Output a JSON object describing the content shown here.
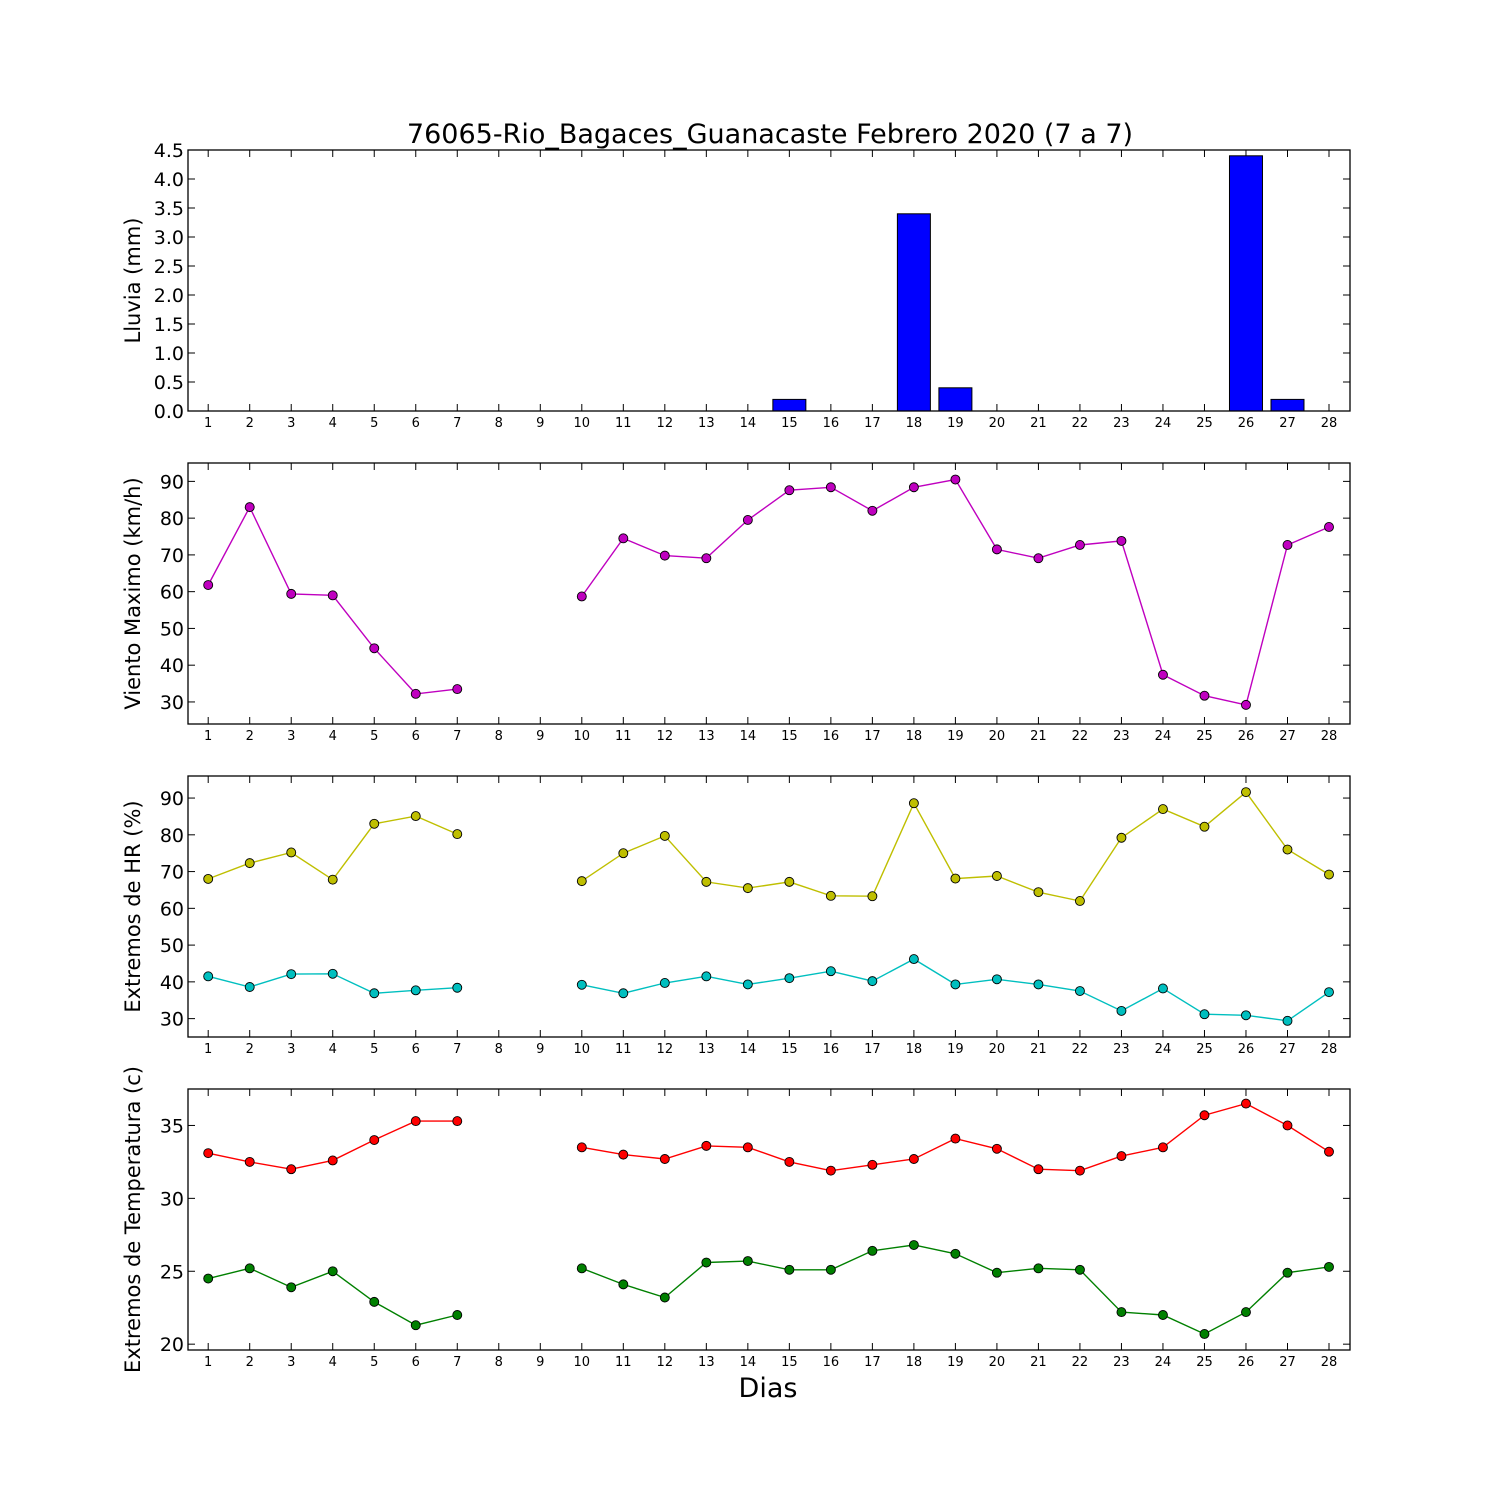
{
  "chart_data": [
    {
      "type": "bar",
      "title": "76065-Rio_Bagaces_Guanacaste Febrero 2020  (7 a 7)",
      "ylabel": "Lluvia (mm)",
      "ylim": [
        0,
        4.5
      ],
      "yticks": [
        "0.0",
        "0.5",
        "1.0",
        "1.5",
        "2.0",
        "2.5",
        "3.0",
        "3.5",
        "4.0",
        "4.5"
      ],
      "categories": [
        "1",
        "2",
        "3",
        "4",
        "5",
        "6",
        "7",
        "8",
        "9",
        "10",
        "11",
        "12",
        "13",
        "14",
        "15",
        "16",
        "17",
        "18",
        "19",
        "20",
        "21",
        "22",
        "23",
        "24",
        "25",
        "26",
        "27",
        "28"
      ],
      "series": [
        {
          "color": "#0000ff",
          "values": [
            0,
            0,
            0,
            0,
            0,
            0,
            0,
            null,
            null,
            0,
            0,
            0,
            0,
            0,
            0.2,
            0,
            0,
            3.4,
            0.4,
            0,
            0,
            0,
            0,
            0,
            0,
            4.4,
            0.2,
            0
          ]
        }
      ]
    },
    {
      "type": "line",
      "ylabel": "Viento Maximo (km/h)",
      "ylim": [
        24,
        95
      ],
      "yticks": [
        "30",
        "40",
        "50",
        "60",
        "70",
        "80",
        "90"
      ],
      "categories": [
        "1",
        "2",
        "3",
        "4",
        "5",
        "6",
        "7",
        "8",
        "9",
        "10",
        "11",
        "12",
        "13",
        "14",
        "15",
        "16",
        "17",
        "18",
        "19",
        "20",
        "21",
        "22",
        "23",
        "24",
        "25",
        "26",
        "27",
        "28"
      ],
      "series": [
        {
          "color": "#bf00bf",
          "values": [
            61.8,
            83.0,
            59.4,
            59.0,
            44.6,
            32.2,
            33.5,
            null,
            null,
            58.7,
            74.5,
            69.8,
            69.1,
            79.5,
            87.6,
            88.4,
            82.0,
            88.4,
            90.5,
            71.5,
            69.1,
            72.7,
            73.8,
            37.4,
            31.7,
            29.2,
            72.7,
            77.6
          ]
        }
      ]
    },
    {
      "type": "line",
      "ylabel": "Extremos de HR (%)",
      "ylim": [
        25,
        96
      ],
      "yticks": [
        "30",
        "40",
        "50",
        "60",
        "70",
        "80",
        "90"
      ],
      "categories": [
        "1",
        "2",
        "3",
        "4",
        "5",
        "6",
        "7",
        "8",
        "9",
        "10",
        "11",
        "12",
        "13",
        "14",
        "15",
        "16",
        "17",
        "18",
        "19",
        "20",
        "21",
        "22",
        "23",
        "24",
        "25",
        "26",
        "27",
        "28"
      ],
      "series": [
        {
          "color": "#bfbf00",
          "values": [
            68.0,
            72.3,
            75.2,
            67.8,
            83.0,
            85.1,
            80.2,
            null,
            null,
            67.4,
            75.0,
            79.7,
            67.2,
            65.5,
            67.2,
            63.4,
            63.3,
            88.6,
            68.1,
            68.8,
            64.4,
            62.0,
            79.2,
            87.0,
            82.2,
            91.6,
            76.0,
            69.2
          ]
        },
        {
          "color": "#00bfbf",
          "values": [
            41.5,
            38.6,
            42.1,
            42.2,
            36.9,
            37.7,
            38.4,
            null,
            null,
            39.2,
            36.9,
            39.7,
            41.5,
            39.3,
            41.0,
            42.9,
            40.2,
            46.2,
            39.3,
            40.7,
            39.3,
            37.5,
            32.1,
            38.2,
            31.2,
            30.9,
            29.4,
            37.2
          ]
        }
      ]
    },
    {
      "type": "line",
      "ylabel": "Extremos de Temperatura (c)",
      "xlabel": "Dias",
      "ylim": [
        19.6,
        37.5
      ],
      "yticks": [
        "20",
        "25",
        "30",
        "35"
      ],
      "categories": [
        "1",
        "2",
        "3",
        "4",
        "5",
        "6",
        "7",
        "8",
        "9",
        "10",
        "11",
        "12",
        "13",
        "14",
        "15",
        "16",
        "17",
        "18",
        "19",
        "20",
        "21",
        "22",
        "23",
        "24",
        "25",
        "26",
        "27",
        "28"
      ],
      "series": [
        {
          "color": "#ff0000",
          "values": [
            33.1,
            32.5,
            32.0,
            32.6,
            34.0,
            35.3,
            35.3,
            null,
            null,
            33.5,
            33.0,
            32.7,
            33.6,
            33.5,
            32.5,
            31.9,
            32.3,
            32.7,
            34.1,
            33.4,
            32.0,
            31.9,
            32.9,
            33.5,
            35.7,
            36.5,
            35.0,
            33.2
          ]
        },
        {
          "color": "#008000",
          "values": [
            24.5,
            25.2,
            23.9,
            25.0,
            22.9,
            21.3,
            22.0,
            null,
            null,
            25.2,
            24.1,
            23.2,
            25.6,
            25.7,
            25.1,
            25.1,
            26.4,
            26.8,
            26.2,
            24.9,
            25.2,
            25.1,
            22.2,
            22.0,
            20.7,
            22.2,
            24.9,
            25.3
          ]
        }
      ]
    }
  ]
}
